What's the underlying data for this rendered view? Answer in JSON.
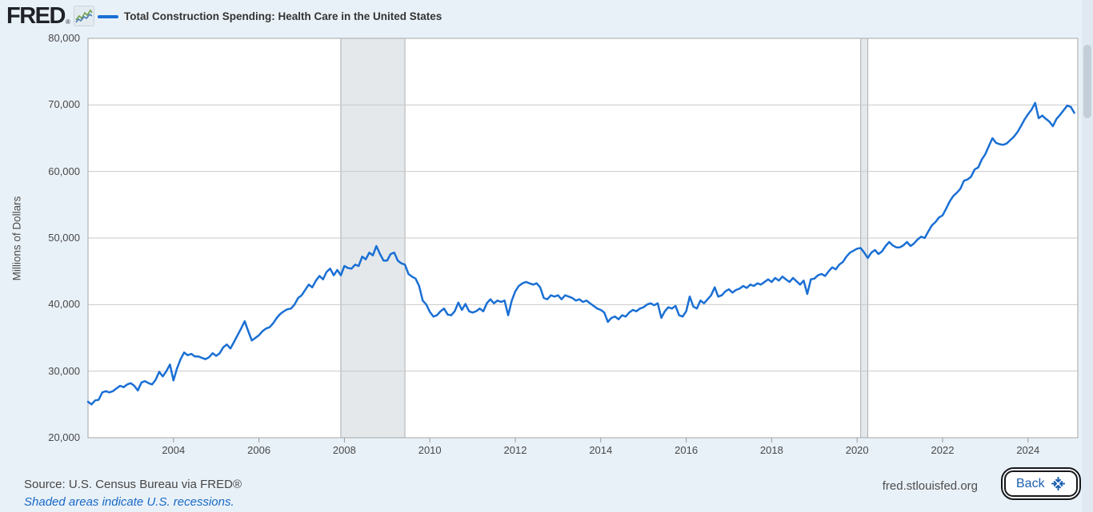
{
  "header": {
    "logo_text": "FRED",
    "logo_reg": "®",
    "legend_label": "Total Construction Spending: Health Care in the United States"
  },
  "colors": {
    "page_bg": "#e9f1f8",
    "plot_bg": "#ffffff",
    "plot_border": "#b3b3b3",
    "grid": "#c9c9c9",
    "line": "#1a6fd4",
    "recession_fill": "#e4e8eb",
    "recession_edge": "#a8aeb3",
    "axis_text": "#484848",
    "note_blue": "#1769c7",
    "back_blue": "#1a5fb0",
    "logo_spark_green": "#6fa34d",
    "logo_spark_blue": "#4a7eb5"
  },
  "y_axis": {
    "title": "Millions of Dollars",
    "min": 20000,
    "max": 80000,
    "ticks": [
      {
        "label": "80,000",
        "value": 80000
      },
      {
        "label": "70,000",
        "value": 70000
      },
      {
        "label": "60,000",
        "value": 60000
      },
      {
        "label": "50,000",
        "value": 50000
      },
      {
        "label": "40,000",
        "value": 40000
      },
      {
        "label": "30,000",
        "value": 30000
      },
      {
        "label": "20,000",
        "value": 20000
      }
    ]
  },
  "x_axis": {
    "ticks": [
      {
        "label": "2004",
        "value": 2004
      },
      {
        "label": "2006",
        "value": 2006
      },
      {
        "label": "2008",
        "value": 2008
      },
      {
        "label": "2010",
        "value": 2010
      },
      {
        "label": "2012",
        "value": 2012
      },
      {
        "label": "2014",
        "value": 2014
      },
      {
        "label": "2016",
        "value": 2016
      },
      {
        "label": "2018",
        "value": 2018
      },
      {
        "label": "2020",
        "value": 2020
      },
      {
        "label": "2022",
        "value": 2022
      },
      {
        "label": "2024",
        "value": 2024
      }
    ]
  },
  "footer": {
    "source": "Source: U.S. Census Bureau via FRED®",
    "note": "Shaded areas indicate U.S. recessions.",
    "site": "fred.stlouisfed.org",
    "back_label": "Back"
  },
  "chart_data": {
    "type": "line",
    "title": "Total Construction Spending: Health Care in the United States",
    "ylabel": "Millions of Dollars",
    "ylim": [
      20000,
      80000
    ],
    "xlim_years": [
      2002.0,
      2025.25
    ],
    "grid": "horizontal",
    "legend_position": "top-left",
    "frequency": "monthly",
    "x_start": "2002-01",
    "x_end": "2025-02",
    "series": [
      {
        "name": "Total Construction Spending: Health Care in the United States",
        "color": "#1a6fd4",
        "values": [
          25400,
          25000,
          25600,
          25700,
          26800,
          27000,
          26800,
          27000,
          27400,
          27800,
          27600,
          28000,
          28200,
          27800,
          27100,
          28300,
          28500,
          28200,
          28000,
          28700,
          29900,
          29200,
          30000,
          31000,
          28600,
          30400,
          31800,
          32800,
          32400,
          32600,
          32200,
          32200,
          32000,
          31800,
          32100,
          32700,
          32300,
          32700,
          33600,
          34000,
          33400,
          34400,
          35400,
          36400,
          37500,
          36000,
          34600,
          35000,
          35400,
          36000,
          36400,
          36600,
          37200,
          38000,
          38600,
          39000,
          39300,
          39400,
          40000,
          41000,
          41400,
          42200,
          43000,
          42600,
          43600,
          44300,
          43800,
          44900,
          45400,
          44400,
          45200,
          44400,
          45800,
          45500,
          45400,
          46000,
          45800,
          47200,
          46800,
          47800,
          47400,
          48800,
          47600,
          46600,
          46600,
          47600,
          47800,
          46600,
          46200,
          46000,
          44600,
          44200,
          43900,
          42800,
          40600,
          40000,
          38900,
          38200,
          38400,
          39000,
          39400,
          38500,
          38400,
          39000,
          40300,
          39200,
          40100,
          39000,
          38800,
          39000,
          39400,
          39000,
          40200,
          40800,
          40200,
          40600,
          40400,
          40600,
          38400,
          40600,
          42000,
          42800,
          43200,
          43400,
          43200,
          43000,
          43200,
          42600,
          41000,
          40800,
          41400,
          41200,
          41400,
          40800,
          41400,
          41200,
          41000,
          40600,
          40800,
          40400,
          40600,
          40200,
          39800,
          39400,
          39200,
          38800,
          37400,
          38000,
          38200,
          37800,
          38400,
          38200,
          38800,
          39200,
          39000,
          39400,
          39600,
          40000,
          40200,
          39900,
          40200,
          38000,
          39000,
          39600,
          39400,
          39800,
          38400,
          38200,
          39000,
          41200,
          39700,
          39400,
          40600,
          40200,
          40800,
          41400,
          42600,
          41200,
          41400,
          42000,
          42300,
          41800,
          42200,
          42400,
          42800,
          42500,
          43000,
          42800,
          43200,
          43000,
          43400,
          43800,
          43400,
          44000,
          43600,
          44200,
          43800,
          43400,
          44000,
          43500,
          43000,
          43600,
          41600,
          43800,
          43900,
          44400,
          44600,
          44300,
          45000,
          45600,
          45300,
          46000,
          46400,
          47200,
          47800,
          48100,
          48400,
          48500,
          47800,
          47000,
          47800,
          48200,
          47600,
          48000,
          48800,
          49400,
          48900,
          48600,
          48600,
          48900,
          49400,
          48800,
          49200,
          49800,
          50200,
          50000,
          51000,
          51900,
          52400,
          53100,
          53400,
          54400,
          55500,
          56300,
          56800,
          57400,
          58600,
          58800,
          59200,
          60300,
          60600,
          61800,
          62600,
          63800,
          65000,
          64300,
          64100,
          64000,
          64200,
          64700,
          65200,
          65900,
          66800,
          67800,
          68600,
          69300,
          70300,
          68000,
          68400,
          67900,
          67500,
          66800,
          67900,
          68500,
          69200,
          69900,
          69700,
          68800
        ]
      }
    ],
    "recessions": [
      {
        "start": "2007-12",
        "end": "2009-06"
      },
      {
        "start": "2020-02",
        "end": "2020-04"
      }
    ]
  }
}
